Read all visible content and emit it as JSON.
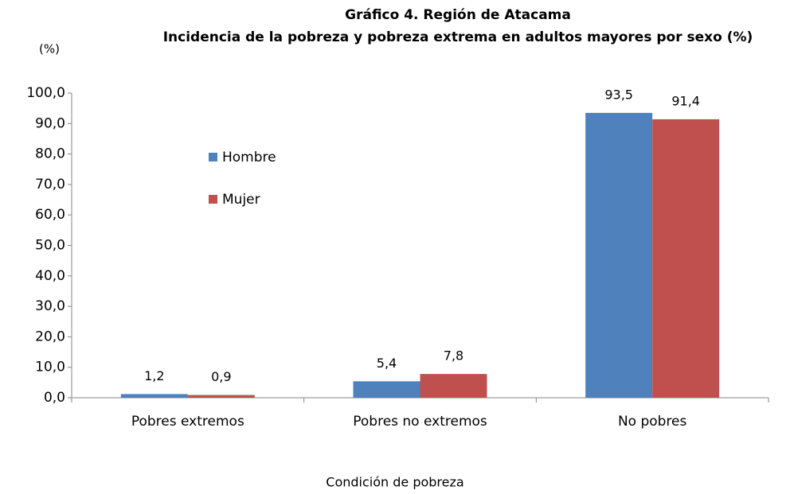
{
  "chart_data": {
    "type": "bar",
    "title": "Gráfico 4. Región de Atacama",
    "subtitle": "Incidencia de la pobreza y pobreza extrema en adultos mayores por sexo (%)",
    "y_label": "(%)",
    "x_label": "Condición de pobreza",
    "categories": [
      "Pobres extremos",
      "Pobres no extremos",
      "No pobres"
    ],
    "series": [
      {
        "name": "Hombre",
        "color": "#4f81bd",
        "values": [
          1.2,
          5.4,
          93.5
        ],
        "value_labels": [
          "1,2",
          "5,4",
          "93,5"
        ]
      },
      {
        "name": "Mujer",
        "color": "#c0504d",
        "values": [
          0.9,
          7.8,
          91.4
        ],
        "value_labels": [
          "0,9",
          "7,8",
          "91,4"
        ]
      }
    ],
    "ylim": [
      0,
      100
    ],
    "yticks": [
      {
        "value": 0,
        "label": "0,0"
      },
      {
        "value": 10,
        "label": "10,0"
      },
      {
        "value": 20,
        "label": "20,0"
      },
      {
        "value": 30,
        "label": "30,0"
      },
      {
        "value": 40,
        "label": "40,0"
      },
      {
        "value": 50,
        "label": "50,0"
      },
      {
        "value": 60,
        "label": "60,0"
      },
      {
        "value": 70,
        "label": "70,0"
      },
      {
        "value": 80,
        "label": "80,0"
      },
      {
        "value": 90,
        "label": "90,0"
      },
      {
        "value": 100,
        "label": "100,0"
      }
    ],
    "grid": false
  }
}
